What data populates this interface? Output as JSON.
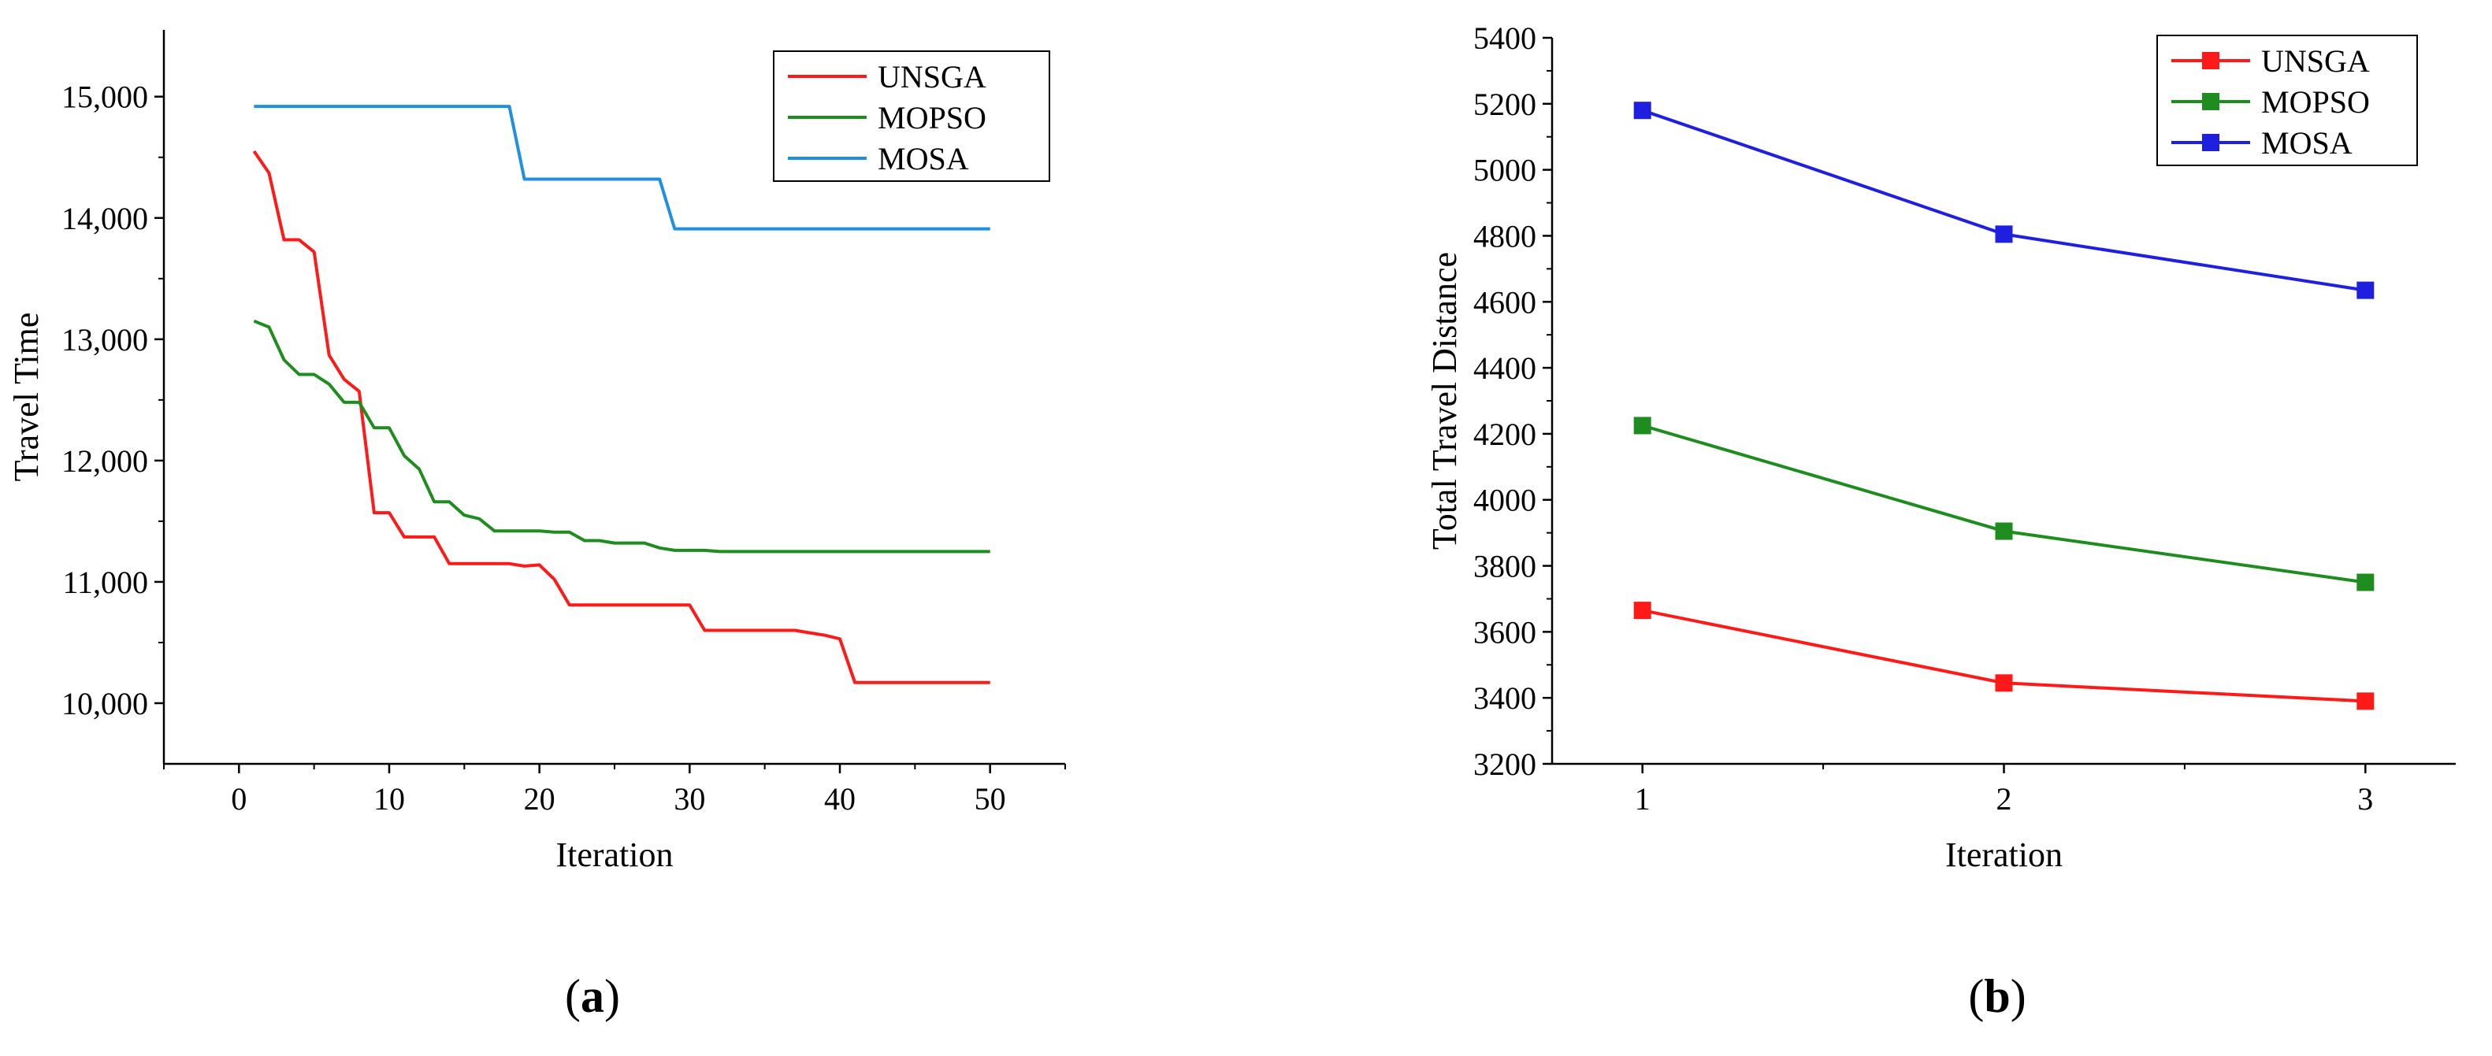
{
  "chart_data": [
    {
      "type": "line",
      "panel_label": "(a)",
      "panel_label_parts": [
        "(",
        "a",
        ")"
      ],
      "title": "",
      "xlabel": "Iteration",
      "ylabel": "Travel Time",
      "xlim": [
        -5,
        55
      ],
      "ylim": [
        9500,
        15550
      ],
      "xticks": [
        0,
        10,
        20,
        30,
        40,
        50
      ],
      "xtick_labels": [
        "0",
        "10",
        "20",
        "30",
        "40",
        "50"
      ],
      "yticks": [
        10000,
        11000,
        12000,
        13000,
        14000,
        15000
      ],
      "ytick_labels": [
        "10,000",
        "11,000",
        "12,000",
        "13,000",
        "14,000",
        "15,000"
      ],
      "grid": false,
      "legend_position": "top-right",
      "series": [
        {
          "name": "UNSGA",
          "color": "#ff1a1a",
          "x": [
            1,
            2,
            3,
            4,
            5,
            6,
            7,
            8,
            9,
            10,
            11,
            12,
            13,
            14,
            15,
            16,
            17,
            18,
            19,
            20,
            21,
            22,
            23,
            24,
            25,
            26,
            27,
            28,
            29,
            30,
            31,
            32,
            33,
            34,
            35,
            36,
            37,
            38,
            39,
            40,
            41,
            42,
            43,
            44,
            45,
            46,
            47,
            48,
            49,
            50
          ],
          "y": [
            14550,
            14370,
            13820,
            13820,
            13720,
            12870,
            12670,
            12570,
            11570,
            11570,
            11370,
            11370,
            11370,
            11150,
            11150,
            11150,
            11150,
            11150,
            11130,
            11140,
            11020,
            10810,
            10810,
            10810,
            10810,
            10810,
            10810,
            10810,
            10810,
            10810,
            10600,
            10600,
            10600,
            10600,
            10600,
            10600,
            10600,
            10580,
            10560,
            10530,
            10170,
            10170,
            10170,
            10170,
            10170,
            10170,
            10170,
            10170,
            10170,
            10170
          ]
        },
        {
          "name": "MOPSO",
          "color": "#1e8c1e",
          "x": [
            1,
            2,
            3,
            4,
            5,
            6,
            7,
            8,
            9,
            10,
            11,
            12,
            13,
            14,
            15,
            16,
            17,
            18,
            19,
            20,
            21,
            22,
            23,
            24,
            25,
            26,
            27,
            28,
            29,
            30,
            31,
            32,
            33,
            34,
            35,
            36,
            37,
            38,
            39,
            40,
            41,
            42,
            43,
            44,
            45,
            46,
            47,
            48,
            49,
            50
          ],
          "y": [
            13150,
            13100,
            12830,
            12710,
            12710,
            12630,
            12480,
            12480,
            12270,
            12270,
            12040,
            11930,
            11660,
            11660,
            11550,
            11520,
            11420,
            11420,
            11420,
            11420,
            11410,
            11410,
            11340,
            11340,
            11320,
            11320,
            11320,
            11280,
            11260,
            11260,
            11260,
            11250,
            11250,
            11250,
            11250,
            11250,
            11250,
            11250,
            11250,
            11250,
            11250,
            11250,
            11250,
            11250,
            11250,
            11250,
            11250,
            11250,
            11250,
            11250
          ]
        },
        {
          "name": "MOSA",
          "color": "#1f8fe0",
          "x": [
            1,
            18,
            19,
            28,
            29,
            50
          ],
          "y": [
            14920,
            14920,
            14320,
            14320,
            13910,
            13910
          ]
        }
      ]
    },
    {
      "type": "line",
      "panel_label": "(b)",
      "panel_label_parts": [
        "(",
        "b",
        ")"
      ],
      "title": "",
      "xlabel": "Iteration",
      "ylabel": "Total Travel Distance",
      "xlim": [
        0.75,
        3.25
      ],
      "ylim": [
        3200,
        5400
      ],
      "xticks": [
        1,
        2,
        3
      ],
      "xtick_labels": [
        "1",
        "2",
        "3"
      ],
      "yticks": [
        3200,
        3400,
        3600,
        3800,
        4000,
        4200,
        4400,
        4600,
        4800,
        5000,
        5200,
        5400
      ],
      "ytick_labels": [
        "3200",
        "3400",
        "3600",
        "3800",
        "4000",
        "4200",
        "4400",
        "4600",
        "4800",
        "5000",
        "5200",
        "5400"
      ],
      "grid": false,
      "legend_position": "top-right",
      "markers": "square",
      "series": [
        {
          "name": "UNSGA",
          "color": "#ff1a1a",
          "x": [
            1,
            2,
            3
          ],
          "y": [
            3665,
            3445,
            3390
          ]
        },
        {
          "name": "MOPSO",
          "color": "#1e8c1e",
          "x": [
            1,
            2,
            3
          ],
          "y": [
            4225,
            3905,
            3750
          ]
        },
        {
          "name": "MOSA",
          "color": "#1f1fe0",
          "x": [
            1,
            2,
            3
          ],
          "y": [
            5180,
            4805,
            4635
          ]
        }
      ]
    }
  ]
}
